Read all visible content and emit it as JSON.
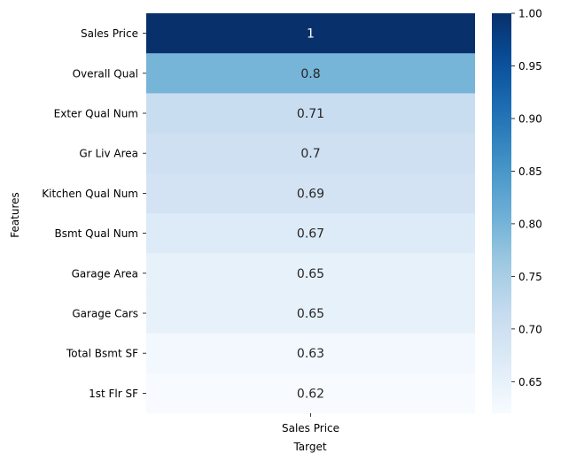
{
  "chart_data": {
    "type": "heatmap",
    "title": "",
    "xlabel": "Target",
    "ylabel": "Features",
    "columns": [
      "Sales Price"
    ],
    "rows": [
      "Sales Price",
      "Overall Qual",
      "Exter Qual Num",
      "Gr Liv Area",
      "Kitchen Qual Num",
      "Bsmt Qual Num",
      "Garage Area",
      "Garage Cars",
      "Total Bsmt SF",
      "1st Flr SF"
    ],
    "values": [
      1,
      0.8,
      0.71,
      0.7,
      0.69,
      0.67,
      0.65,
      0.65,
      0.63,
      0.62
    ],
    "value_labels": [
      "1",
      "0.8",
      "0.71",
      "0.7",
      "0.69",
      "0.67",
      "0.65",
      "0.65",
      "0.63",
      "0.62"
    ],
    "colormap": "Blues",
    "colorbar": {
      "range": [
        0.62,
        1.0
      ],
      "ticks": [
        0.65,
        0.7,
        0.75,
        0.8,
        0.85,
        0.9,
        0.95,
        1.0
      ],
      "tick_labels": [
        "0.65",
        "0.70",
        "0.75",
        "0.80",
        "0.85",
        "0.90",
        "0.95",
        "1.00"
      ]
    },
    "annotated": true
  }
}
